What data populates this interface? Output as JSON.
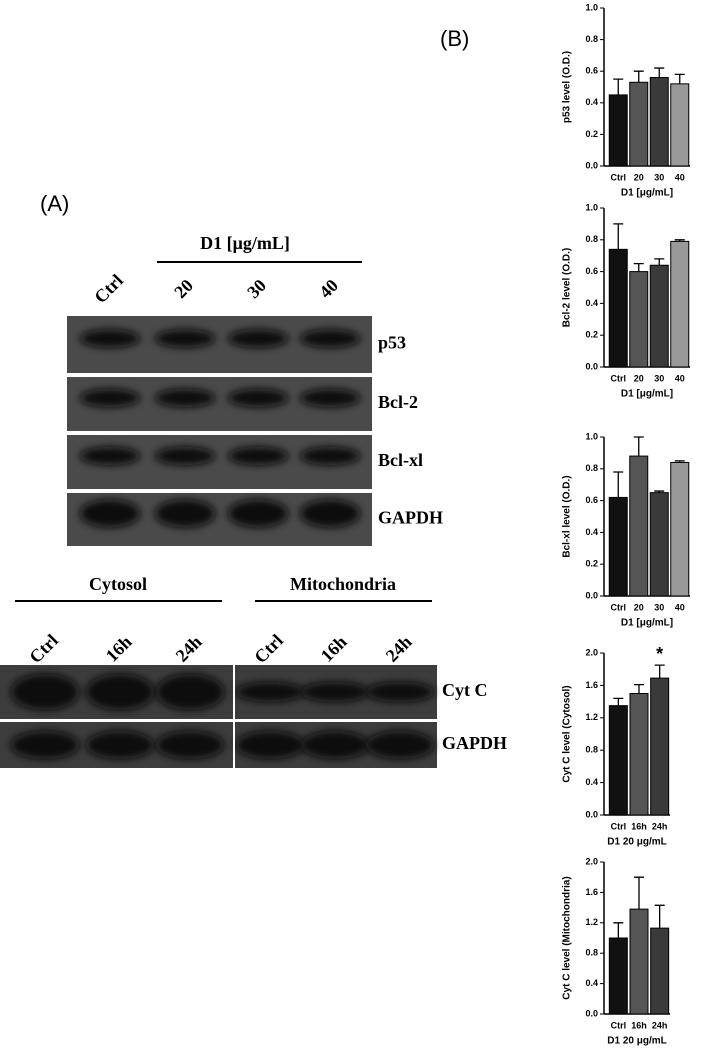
{
  "panel_a": {
    "label": "(A)",
    "treatment_header": "D1 [μg/mL]",
    "lanes": [
      "Ctrl",
      "20",
      "30",
      "40"
    ],
    "proteins": [
      "p53",
      "Bcl-2",
      "Bcl-xl",
      "GAPDH"
    ],
    "fraction_headers": [
      "Cytosol",
      "Mitochondria"
    ],
    "fraction_lanes": [
      "Ctrl",
      "16h",
      "24h",
      "Ctrl",
      "16h",
      "24h"
    ],
    "fraction_proteins": [
      "Cyt C",
      "GAPDH"
    ]
  },
  "panel_b": {
    "label": "(B)"
  },
  "chart_data": [
    {
      "type": "bar",
      "y_label": "p53 level (O.D.)",
      "x_label": "D1 [μg/mL]",
      "categories": [
        "Ctrl",
        "20",
        "30",
        "40"
      ],
      "values": [
        0.45,
        0.53,
        0.56,
        0.52
      ],
      "errors": [
        0.1,
        0.07,
        0.06,
        0.06
      ],
      "colors": [
        "#111111",
        "#555555",
        "#3a3a3a",
        "#999999"
      ],
      "ylim": [
        0,
        1
      ],
      "yticks": [
        {
          "value": 0,
          "label": "0.0"
        },
        0.2,
        0.4,
        0.6,
        0.8,
        {
          "value": 1,
          "label": "1.0"
        }
      ]
    },
    {
      "type": "bar",
      "y_label": "Bcl-2 level (O.D.)",
      "x_label": "D1 [μg/mL]",
      "categories": [
        "Ctrl",
        "20",
        "30",
        "40"
      ],
      "values": [
        0.74,
        0.6,
        0.64,
        0.79
      ],
      "errors": [
        0.16,
        0.05,
        0.04,
        0.01
      ],
      "colors": [
        "#111111",
        "#555555",
        "#3a3a3a",
        "#999999"
      ],
      "ylim": [
        0,
        1
      ],
      "yticks": [
        {
          "value": 0,
          "label": "0.0"
        },
        0.2,
        0.4,
        0.6,
        0.8,
        {
          "value": 1,
          "label": "1.0"
        }
      ]
    },
    {
      "type": "bar",
      "y_label": "Bcl-xl level (O.D.)",
      "x_label": "D1 [μg/mL]",
      "categories": [
        "Ctrl",
        "20",
        "30",
        "40"
      ],
      "values": [
        0.62,
        0.88,
        0.65,
        0.84
      ],
      "errors": [
        0.16,
        0.12,
        0.01,
        0.01
      ],
      "colors": [
        "#111111",
        "#555555",
        "#3a3a3a",
        "#999999"
      ],
      "ylim": [
        0,
        1
      ],
      "yticks": [
        {
          "value": 0,
          "label": "0.0"
        },
        0.2,
        0.4,
        0.6,
        0.8,
        {
          "value": 1,
          "label": "1.0"
        }
      ]
    },
    {
      "type": "bar",
      "y_label": "Cyt C level (Cytosol)",
      "x_label": "D1 20 μg/mL",
      "categories": [
        "Ctrl",
        "16h",
        "24h"
      ],
      "values": [
        1.35,
        1.5,
        1.69
      ],
      "errors": [
        0.09,
        0.11,
        0.16
      ],
      "colors": [
        "#111111",
        "#555555",
        "#3a3a3a"
      ],
      "ylim": [
        0,
        2
      ],
      "yticks": [
        {
          "value": 0,
          "label": "0.0"
        },
        0.4,
        0.8,
        1.2,
        1.6,
        {
          "value": 2,
          "label": "2.0"
        }
      ],
      "annotation": {
        "text": "*",
        "category": "24h"
      }
    },
    {
      "type": "bar",
      "y_label": "Cyt C level (Mitochondria)",
      "x_label": "D1 20 μg/mL",
      "categories": [
        "Ctrl",
        "16h",
        "24h"
      ],
      "values": [
        1.0,
        1.38,
        1.13
      ],
      "errors": [
        0.2,
        0.42,
        0.3
      ],
      "colors": [
        "#111111",
        "#555555",
        "#3a3a3a"
      ],
      "ylim": [
        0,
        2
      ],
      "yticks": [
        {
          "value": 0,
          "label": "0.0"
        },
        0.4,
        0.8,
        1.2,
        1.6,
        {
          "value": 2,
          "label": "2.0"
        }
      ]
    }
  ]
}
